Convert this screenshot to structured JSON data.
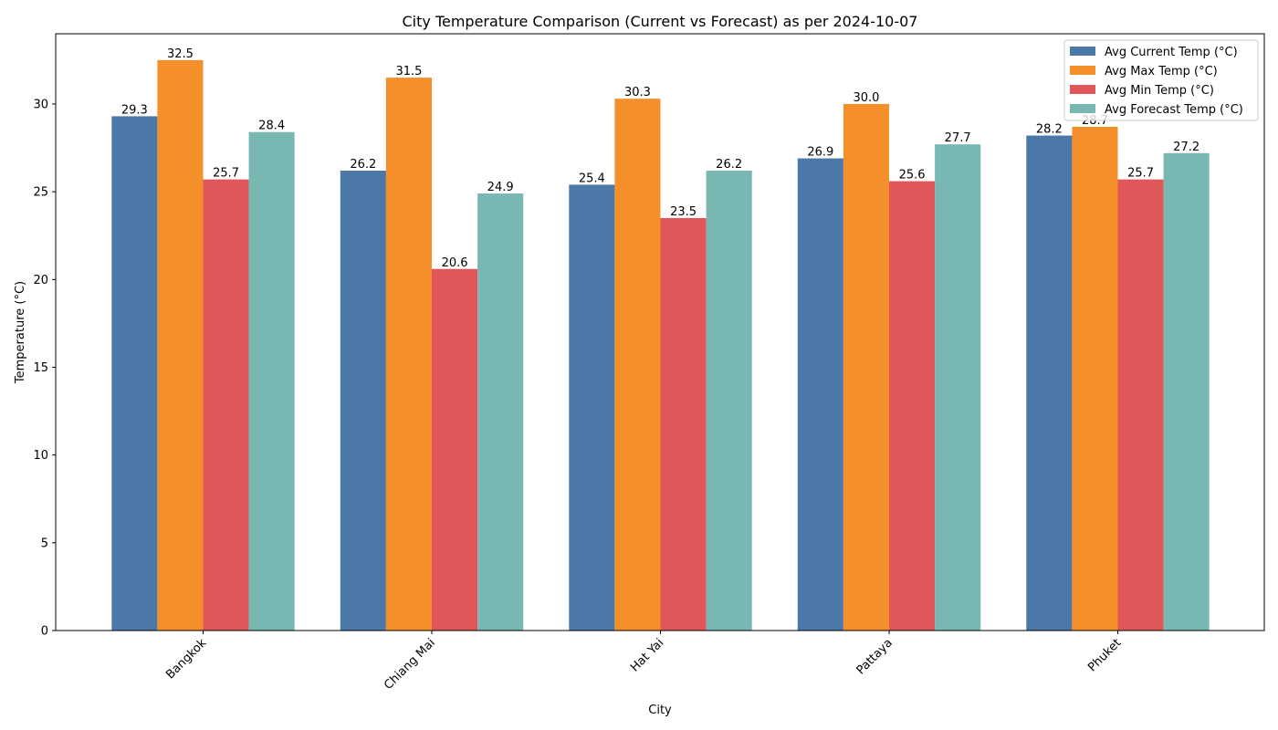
{
  "chart_data": {
    "type": "bar",
    "title": "City Temperature Comparison (Current vs Forecast) as per 2024-10-07",
    "xlabel": "City",
    "ylabel": "Temperature (°C)",
    "categories": [
      "Bangkok",
      "Chiang Mai",
      "Hat Yai",
      "Pattaya",
      "Phuket"
    ],
    "ylim": [
      0,
      34
    ],
    "yticks": [
      0,
      5,
      10,
      15,
      20,
      25,
      30
    ],
    "grid": false,
    "legend_position": "top-right",
    "series": [
      {
        "name": "Avg Current Temp (°C)",
        "color": "#4c78a8",
        "values": [
          29.3,
          26.2,
          25.4,
          26.9,
          28.2
        ],
        "labels": [
          "29.3",
          "26.2",
          "25.4",
          "26.9",
          "28.2"
        ]
      },
      {
        "name": "Avg Max Temp (°C)",
        "color": "#f58f2c",
        "values": [
          32.5,
          31.5,
          30.3,
          30.0,
          28.7
        ],
        "labels": [
          "32.5",
          "31.5",
          "30.3",
          "30.0",
          "28.7"
        ]
      },
      {
        "name": "Avg Min Temp (°C)",
        "color": "#e15659",
        "values": [
          25.7,
          20.6,
          23.5,
          25.6,
          25.7
        ],
        "labels": [
          "25.7",
          "20.6",
          "23.5",
          "25.6",
          "25.7"
        ]
      },
      {
        "name": "Avg Forecast Temp (°C)",
        "color": "#79b7b2",
        "values": [
          28.4,
          24.9,
          26.2,
          27.7,
          27.2
        ],
        "labels": [
          "28.4",
          "24.9",
          "26.2",
          "27.7",
          "27.2"
        ]
      }
    ]
  }
}
